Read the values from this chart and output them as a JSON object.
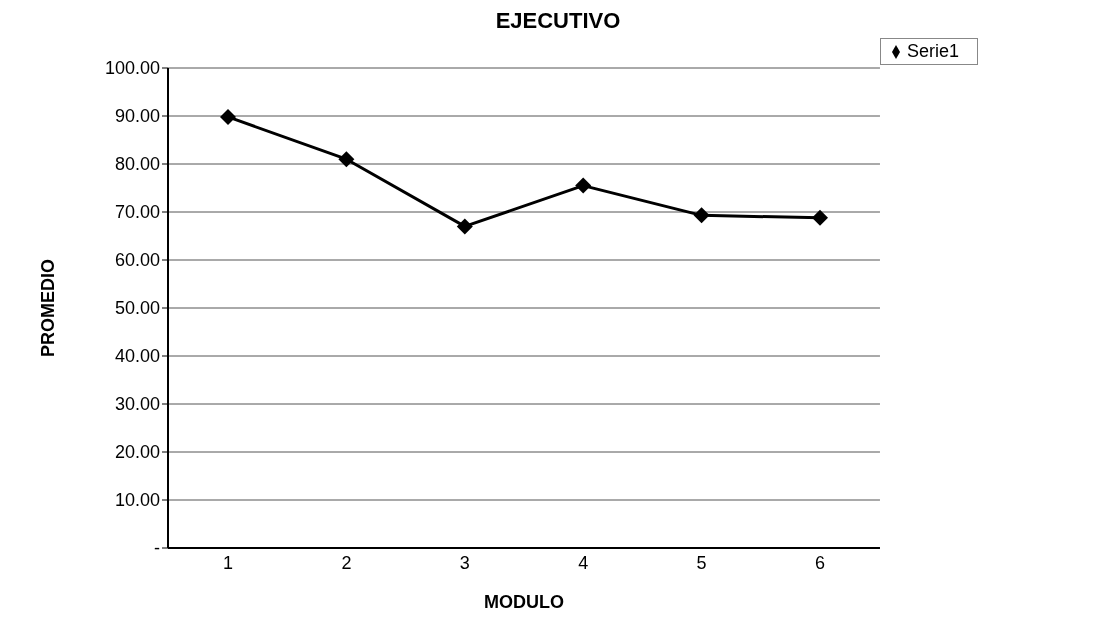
{
  "chart_data": {
    "type": "line",
    "title": "EJECUTIVO",
    "xlabel": "MODULO",
    "ylabel": "PROMEDIO",
    "categories": [
      "1",
      "2",
      "3",
      "4",
      "5",
      "6"
    ],
    "series": [
      {
        "name": "Serie1",
        "color": "#000000",
        "values": [
          89.8,
          81,
          67,
          75.5,
          69.3,
          68.8
        ]
      }
    ],
    "ylim": [
      0,
      100
    ],
    "yticks": [
      {
        "value": 0,
        "label": "-"
      },
      {
        "value": 10,
        "label": "10.00"
      },
      {
        "value": 20,
        "label": "20.00"
      },
      {
        "value": 30,
        "label": "30.00"
      },
      {
        "value": 40,
        "label": "40.00"
      },
      {
        "value": 50,
        "label": "50.00"
      },
      {
        "value": 60,
        "label": "60.00"
      },
      {
        "value": 70,
        "label": "70.00"
      },
      {
        "value": 80,
        "label": "80.00"
      },
      {
        "value": 90,
        "label": "90.00"
      },
      {
        "value": 100,
        "label": "100.00"
      }
    ],
    "grid": "y",
    "legend": "top right",
    "marker": "diamond",
    "line_style": "solid"
  }
}
